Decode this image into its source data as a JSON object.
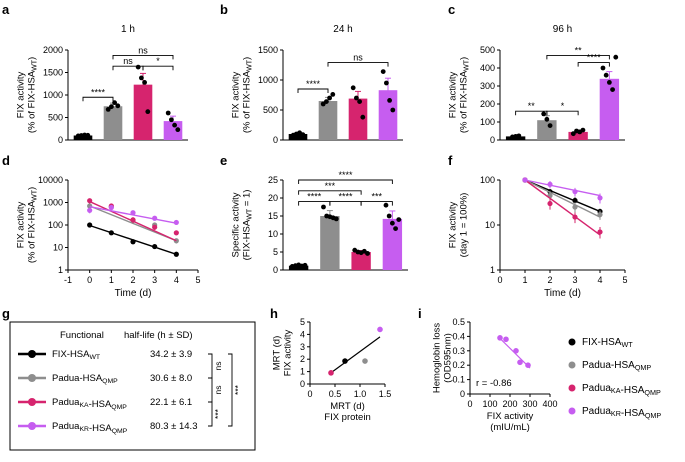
{
  "colors": {
    "wt": "#000000",
    "qmp": "#8e8e8e",
    "ka": "#d6246e",
    "kr": "#c65df0"
  },
  "legend": {
    "items": [
      {
        "base": "FIX-HSA",
        "sub": "WT",
        "tail": "",
        "tailsub": "",
        "color_key": "wt"
      },
      {
        "base": "Padua-HSA",
        "sub": "QMP",
        "tail": "",
        "tailsub": "",
        "color_key": "qmp"
      },
      {
        "base": "Padua",
        "sub": "KA",
        "tail": "-HSA",
        "tailsub": "QMP",
        "color_key": "ka"
      },
      {
        "base": "Padua",
        "sub": "KR",
        "tail": "-HSA",
        "tailsub": "QMP",
        "color_key": "kr"
      }
    ]
  },
  "table_g": {
    "letter": "g",
    "header_a": "Functional",
    "header_b": "half-life (h ± SD)",
    "rows": [
      {
        "base": "FIX-HSA",
        "sub": "WT",
        "tail": "",
        "tailsub": "",
        "value": "34.2 ± 3.9",
        "color_key": "wt"
      },
      {
        "base": "Padua-HSA",
        "sub": "QMP",
        "tail": "",
        "tailsub": "",
        "value": "30.6 ± 8.0",
        "color_key": "qmp"
      },
      {
        "base": "Padua",
        "sub": "KA",
        "tail": "-HSA",
        "tailsub": "QMP",
        "value": "22.1 ± 6.1",
        "color_key": "ka"
      },
      {
        "base": "Padua",
        "sub": "KR",
        "tail": "-HSA",
        "tailsub": "QMP",
        "value": "80.3 ± 14.3",
        "color_key": "kr"
      }
    ],
    "significance": [
      {
        "from": 0,
        "to": 1,
        "label": "ns"
      },
      {
        "from": 1,
        "to": 2,
        "label": "ns"
      },
      {
        "from": 2,
        "to": 3,
        "label": "***"
      },
      {
        "from": 0,
        "to": 3,
        "label": "***"
      }
    ]
  },
  "chart_data": [
    {
      "panel": "a",
      "type": "bar",
      "title": "1 h",
      "ylabel_lines": [
        {
          "text": "FIX activity"
        },
        {
          "text": "(% of FIX-HSA",
          "sub": "WT",
          "after": ")"
        }
      ],
      "ylim": [
        0,
        2000
      ],
      "yticks": [
        0,
        500,
        1000,
        1500,
        2000
      ],
      "groups": [
        {
          "key": "wt",
          "mean": 100,
          "err": 15,
          "points": [
            90,
            100,
            110,
            105
          ]
        },
        {
          "key": "qmp",
          "mean": 750,
          "err": 70,
          "points": [
            680,
            740,
            830,
            760
          ]
        },
        {
          "key": "ka",
          "mean": 1230,
          "err": 250,
          "points": [
            1620,
            1380,
            1280,
            630
          ]
        },
        {
          "key": "kr",
          "mean": 420,
          "err": 110,
          "points": [
            600,
            450,
            330,
            230
          ]
        }
      ],
      "sig": [
        {
          "a": 0,
          "b": 1,
          "y": 950,
          "label": "****"
        },
        {
          "a": 1,
          "b": 2,
          "y": 1640,
          "label": "ns"
        },
        {
          "a": 1,
          "b": 3,
          "y": 1880,
          "label": "ns"
        },
        {
          "a": 2,
          "b": 3,
          "y": 1640,
          "label": "*"
        }
      ]
    },
    {
      "panel": "b",
      "type": "bar",
      "title": "24 h",
      "ylabel_lines": [
        {
          "text": "FIX activity"
        },
        {
          "text": "(% of FIX-HSA",
          "sub": "WT",
          "after": ")"
        }
      ],
      "ylim": [
        0,
        1500
      ],
      "yticks": [
        0,
        500,
        1000,
        1500
      ],
      "groups": [
        {
          "key": "wt",
          "mean": 100,
          "err": 15,
          "points": [
            80,
            100,
            120,
            90
          ]
        },
        {
          "key": "qmp",
          "mean": 650,
          "err": 60,
          "points": [
            600,
            640,
            700,
            760
          ]
        },
        {
          "key": "ka",
          "mean": 690,
          "err": 120,
          "points": [
            870,
            700,
            640,
            380
          ]
        },
        {
          "key": "kr",
          "mean": 830,
          "err": 200,
          "points": [
            1140,
            950,
            660,
            500
          ]
        }
      ],
      "sig": [
        {
          "a": 0,
          "b": 1,
          "y": 850,
          "label": "****"
        },
        {
          "a": 1,
          "b": 3,
          "y": 1290,
          "label": "ns"
        }
      ]
    },
    {
      "panel": "c",
      "type": "bar",
      "title": "96 h",
      "ylabel_lines": [
        {
          "text": "FIX activity"
        },
        {
          "text": "(% of FIX-HSA",
          "sub": "WT",
          "after": ")"
        }
      ],
      "ylim": [
        0,
        500
      ],
      "yticks": [
        0,
        100,
        200,
        300,
        400,
        500
      ],
      "groups": [
        {
          "key": "wt",
          "mean": 20,
          "err": 3,
          "points": [
            17,
            20,
            23
          ]
        },
        {
          "key": "qmp",
          "mean": 110,
          "err": 25,
          "points": [
            145,
            115,
            80
          ]
        },
        {
          "key": "ka",
          "mean": 45,
          "err": 8,
          "points": [
            35,
            50,
            45,
            55
          ]
        },
        {
          "key": "kr",
          "mean": 340,
          "err": 40,
          "points": [
            400,
            360,
            320,
            280,
            460
          ]
        }
      ],
      "sig": [
        {
          "a": 0,
          "b": 1,
          "y": 160,
          "label": "**"
        },
        {
          "a": 1,
          "b": 2,
          "y": 160,
          "label": "*"
        },
        {
          "a": 2,
          "b": 3,
          "y": 430,
          "label": "****"
        },
        {
          "a": 1,
          "b": 3,
          "y": 470,
          "label": "**"
        }
      ]
    },
    {
      "panel": "d",
      "type": "line",
      "yscale": "log",
      "ylabel_lines": [
        {
          "text": "FIX activity"
        },
        {
          "text": "(% of FIX-HSA",
          "sub": "WT",
          "after": ")"
        }
      ],
      "xlabel": "Time (d)",
      "xlim": [
        -1,
        5
      ],
      "xticks": [
        -1,
        0,
        1,
        2,
        3,
        4,
        5
      ],
      "ylim": [
        1,
        10000
      ],
      "yticks": [
        1,
        10,
        100,
        1000,
        10000
      ],
      "ytick_labels": [
        "1",
        "10",
        "100",
        "1000",
        "10000"
      ],
      "series": [
        {
          "key": "wt",
          "x": [
            0,
            1,
            2,
            3,
            4
          ],
          "y": [
            100,
            45,
            18,
            11,
            5
          ],
          "err": [
            10,
            6,
            3,
            2,
            1
          ],
          "fit": [
            [
              0,
              95
            ],
            [
              4,
              5
            ]
          ]
        },
        {
          "key": "qmp",
          "x": [
            0,
            1,
            2,
            3,
            4
          ],
          "y": [
            700,
            650,
            160,
            100,
            20
          ],
          "err": [
            150,
            120,
            40,
            25,
            5
          ],
          "fit": [
            [
              0,
              700
            ],
            [
              4,
              20
            ]
          ]
        },
        {
          "key": "ka",
          "x": [
            0,
            1,
            2,
            3,
            4
          ],
          "y": [
            1200,
            700,
            170,
            80,
            45
          ],
          "err": [
            300,
            200,
            50,
            20,
            10
          ],
          "fit": [
            [
              0,
              1100
            ],
            [
              4,
              20
            ]
          ]
        },
        {
          "key": "kr",
          "x": [
            0,
            1,
            2,
            3,
            4
          ],
          "y": [
            450,
            600,
            350,
            200,
            130
          ],
          "err": [
            120,
            150,
            70,
            40,
            25
          ],
          "fit": [
            [
              0,
              650
            ],
            [
              4,
              120
            ]
          ]
        }
      ]
    },
    {
      "panel": "e",
      "type": "bar",
      "ylabel_lines": [
        {
          "text": "Specific activity"
        },
        {
          "text": "(FIX-HSA",
          "sub": "WT",
          "after": " = 1)"
        }
      ],
      "ylim": [
        0,
        25
      ],
      "yticks": [
        0,
        5,
        10,
        15,
        20,
        25
      ],
      "groups": [
        {
          "key": "wt",
          "mean": 1.2,
          "err": 0.2,
          "points": [
            1.0,
            1.2,
            1.4,
            1.1,
            1.3
          ]
        },
        {
          "key": "qmp",
          "mean": 15,
          "err": 1.5,
          "points": [
            17.5,
            15,
            14.8,
            14.5,
            14.2
          ]
        },
        {
          "key": "ka",
          "mean": 5,
          "err": 0.4,
          "points": [
            5.5,
            5.0,
            4.8,
            5.2,
            4.6
          ]
        },
        {
          "key": "kr",
          "mean": 14.2,
          "err": 2.2,
          "points": [
            18,
            15,
            13,
            11.5,
            14
          ]
        }
      ],
      "sig": [
        {
          "a": 0,
          "b": 1,
          "y": 19,
          "label": "****"
        },
        {
          "a": 1,
          "b": 2,
          "y": 19,
          "label": "****"
        },
        {
          "a": 2,
          "b": 3,
          "y": 19,
          "label": "***"
        },
        {
          "a": 0,
          "b": 2,
          "y": 22,
          "label": "***"
        },
        {
          "a": 0,
          "b": 3,
          "y": 25,
          "label": "****"
        }
      ]
    },
    {
      "panel": "f",
      "type": "line",
      "yscale": "log",
      "ylabel_lines": [
        {
          "text": "FIX activity"
        },
        {
          "text": "(day 1 = 100%)"
        }
      ],
      "xlabel": "Time (d)",
      "xlim": [
        0,
        5
      ],
      "xticks": [
        0,
        1,
        2,
        3,
        4,
        5
      ],
      "ylim": [
        1,
        100
      ],
      "yticks": [
        1,
        10,
        100
      ],
      "ytick_labels": [
        "1",
        "10",
        "100"
      ],
      "series": [
        {
          "key": "wt",
          "x": [
            1,
            2,
            3,
            4
          ],
          "y": [
            100,
            55,
            35,
            20
          ],
          "err": [
            0,
            8,
            6,
            3
          ],
          "fit": [
            [
              1,
              100
            ],
            [
              4,
              20
            ]
          ]
        },
        {
          "key": "qmp",
          "x": [
            1,
            2,
            3,
            4
          ],
          "y": [
            100,
            45,
            25,
            17
          ],
          "err": [
            0,
            12,
            7,
            4
          ],
          "fit": [
            [
              1,
              100
            ],
            [
              4,
              15
            ]
          ]
        },
        {
          "key": "ka",
          "x": [
            1,
            2,
            3,
            4
          ],
          "y": [
            100,
            30,
            15,
            7
          ],
          "err": [
            0,
            8,
            4,
            2
          ],
          "fit": [
            [
              1,
              100
            ],
            [
              4,
              6
            ]
          ]
        },
        {
          "key": "kr",
          "x": [
            1,
            2,
            3,
            4
          ],
          "y": [
            100,
            80,
            55,
            40
          ],
          "err": [
            0,
            15,
            12,
            10
          ],
          "fit": [
            [
              1,
              100
            ],
            [
              4,
              45
            ]
          ]
        }
      ]
    },
    {
      "panel": "h",
      "type": "scatter",
      "ylabel_lines": [
        {
          "text": "MRT (d)"
        },
        {
          "text": "FIX activity"
        }
      ],
      "xlabel_lines": [
        "MRT (d)",
        "FIX protein"
      ],
      "xlim": [
        0,
        1.5
      ],
      "xticks": [
        0,
        0.5,
        1,
        1.5
      ],
      "xtick_labels": [
        "0",
        "0.5",
        "1.0",
        "1.5"
      ],
      "ylim": [
        0,
        5
      ],
      "yticks": [
        0,
        1,
        2,
        3,
        4,
        5
      ],
      "points": [
        {
          "key": "ka",
          "x": 0.42,
          "y": 0.9
        },
        {
          "key": "wt",
          "x": 0.7,
          "y": 1.85
        },
        {
          "key": "qmp",
          "x": 1.1,
          "y": 1.85
        },
        {
          "key": "kr",
          "x": 1.4,
          "y": 4.4
        }
      ],
      "fit": [
        [
          0.4,
          0.85
        ],
        [
          1.4,
          3.8
        ]
      ]
    },
    {
      "panel": "i",
      "type": "scatter",
      "ylabel_lines": [
        {
          "text": "Hemoglobin loss"
        },
        {
          "text": "(OD595nm)"
        }
      ],
      "xlabel_lines": [
        "FIX activity",
        "(mIU/mL)"
      ],
      "xlim": [
        0,
        400
      ],
      "xticks": [
        0,
        100,
        200,
        300,
        400
      ],
      "ylim": [
        0,
        0.5
      ],
      "yticks": [
        0,
        0.1,
        0.2,
        0.3,
        0.4,
        0.5
      ],
      "ytick_labels": [
        "0",
        "0.1",
        "0.2",
        "0.3",
        "0.4",
        "0.5"
      ],
      "annotation": "r = -0.86",
      "points": [
        {
          "key": "kr",
          "x": 150,
          "y": 0.39
        },
        {
          "key": "kr",
          "x": 180,
          "y": 0.38
        },
        {
          "key": "kr",
          "x": 230,
          "y": 0.3
        },
        {
          "key": "kr",
          "x": 250,
          "y": 0.22
        },
        {
          "key": "kr",
          "x": 290,
          "y": 0.2
        }
      ],
      "fit": [
        [
          140,
          0.4
        ],
        [
          300,
          0.18
        ]
      ]
    }
  ]
}
